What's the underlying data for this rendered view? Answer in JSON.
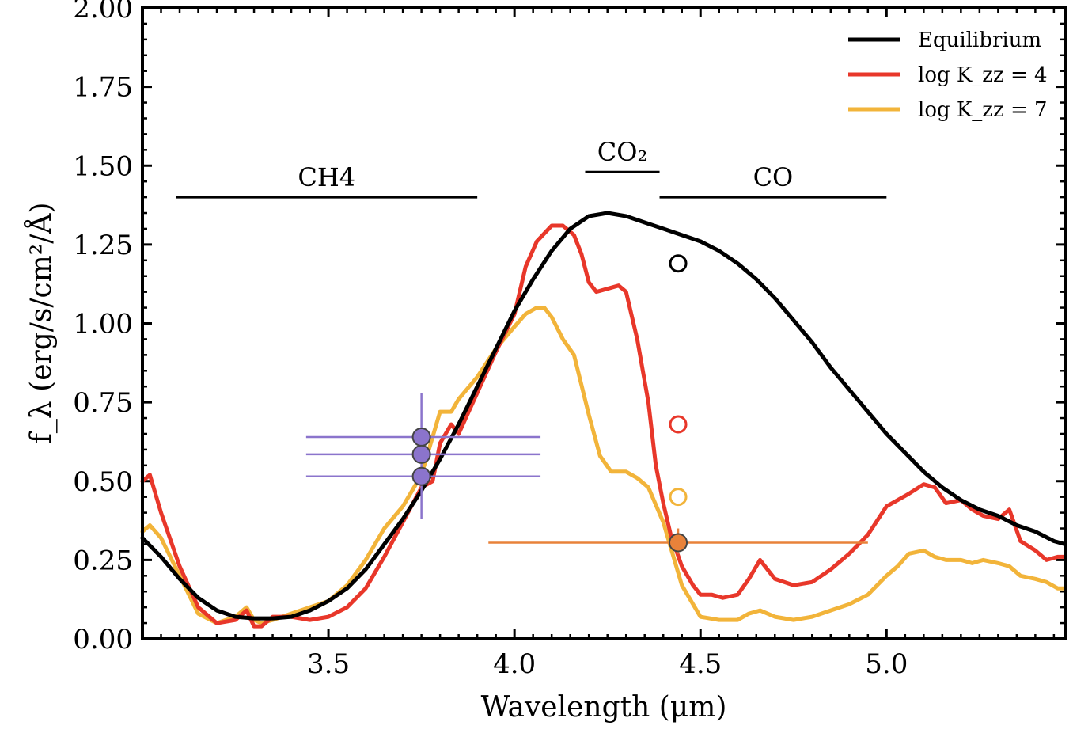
{
  "chart_data": {
    "type": "line",
    "xlabel": "Wavelength (μm)",
    "ylabel": "f_λ (erg/s/cm²/Å)",
    "xlim": [
      3.0,
      5.48
    ],
    "ylim": [
      0.0,
      2.0
    ],
    "x_ticks": [
      3.5,
      4.0,
      4.5,
      5.0
    ],
    "x_tick_labels": [
      "3.5",
      "4.0",
      "4.5",
      "5.0"
    ],
    "y_ticks": [
      0.0,
      0.25,
      0.5,
      0.75,
      1.0,
      1.25,
      1.5,
      1.75,
      2.0
    ],
    "y_tick_labels": [
      "0.00",
      "0.25",
      "0.50",
      "0.75",
      "1.00",
      "1.25",
      "1.50",
      "1.75",
      "2.00"
    ],
    "grid": false,
    "legend_position": "top-right",
    "series": [
      {
        "name": "Equilibrium",
        "color": "#000000",
        "x": [
          3.0,
          3.05,
          3.1,
          3.15,
          3.2,
          3.25,
          3.3,
          3.35,
          3.4,
          3.45,
          3.5,
          3.55,
          3.6,
          3.65,
          3.7,
          3.75,
          3.8,
          3.85,
          3.9,
          3.95,
          4.0,
          4.05,
          4.1,
          4.15,
          4.2,
          4.25,
          4.3,
          4.35,
          4.4,
          4.45,
          4.5,
          4.55,
          4.6,
          4.65,
          4.7,
          4.75,
          4.8,
          4.85,
          4.9,
          4.95,
          5.0,
          5.05,
          5.1,
          5.15,
          5.2,
          5.25,
          5.3,
          5.35,
          5.4,
          5.45,
          5.48
        ],
        "y": [
          0.32,
          0.26,
          0.19,
          0.13,
          0.09,
          0.07,
          0.065,
          0.065,
          0.07,
          0.09,
          0.12,
          0.16,
          0.22,
          0.3,
          0.38,
          0.47,
          0.57,
          0.68,
          0.8,
          0.92,
          1.04,
          1.14,
          1.23,
          1.3,
          1.34,
          1.35,
          1.34,
          1.32,
          1.3,
          1.28,
          1.26,
          1.23,
          1.19,
          1.14,
          1.08,
          1.01,
          0.94,
          0.86,
          0.79,
          0.72,
          0.65,
          0.59,
          0.53,
          0.48,
          0.44,
          0.41,
          0.39,
          0.36,
          0.34,
          0.31,
          0.3
        ]
      },
      {
        "name": "log K_zz = 4",
        "color": "#e8372a",
        "x": [
          3.0,
          3.02,
          3.05,
          3.1,
          3.15,
          3.2,
          3.25,
          3.28,
          3.3,
          3.32,
          3.35,
          3.4,
          3.45,
          3.5,
          3.55,
          3.6,
          3.65,
          3.7,
          3.75,
          3.78,
          3.8,
          3.83,
          3.85,
          3.9,
          3.95,
          4.0,
          4.03,
          4.06,
          4.1,
          4.13,
          4.16,
          4.18,
          4.2,
          4.22,
          4.25,
          4.28,
          4.3,
          4.33,
          4.36,
          4.38,
          4.4,
          4.42,
          4.45,
          4.48,
          4.5,
          4.53,
          4.56,
          4.6,
          4.63,
          4.66,
          4.7,
          4.75,
          4.8,
          4.85,
          4.9,
          4.95,
          5.0,
          5.03,
          5.06,
          5.1,
          5.13,
          5.16,
          5.2,
          5.23,
          5.26,
          5.3,
          5.33,
          5.36,
          5.4,
          5.43,
          5.46,
          5.48
        ],
        "y": [
          0.5,
          0.52,
          0.4,
          0.23,
          0.1,
          0.05,
          0.06,
          0.09,
          0.04,
          0.04,
          0.07,
          0.07,
          0.06,
          0.07,
          0.1,
          0.16,
          0.26,
          0.37,
          0.48,
          0.5,
          0.62,
          0.68,
          0.65,
          0.78,
          0.91,
          1.03,
          1.18,
          1.26,
          1.31,
          1.31,
          1.28,
          1.22,
          1.13,
          1.1,
          1.11,
          1.12,
          1.1,
          0.95,
          0.75,
          0.55,
          0.43,
          0.33,
          0.23,
          0.17,
          0.14,
          0.14,
          0.13,
          0.14,
          0.19,
          0.25,
          0.19,
          0.17,
          0.18,
          0.22,
          0.27,
          0.33,
          0.42,
          0.44,
          0.46,
          0.49,
          0.48,
          0.43,
          0.44,
          0.41,
          0.39,
          0.38,
          0.41,
          0.31,
          0.28,
          0.25,
          0.26,
          0.26
        ]
      },
      {
        "name": "log K_zz = 7",
        "color": "#f2b43a",
        "x": [
          3.0,
          3.02,
          3.05,
          3.1,
          3.15,
          3.2,
          3.25,
          3.28,
          3.3,
          3.32,
          3.35,
          3.4,
          3.45,
          3.5,
          3.55,
          3.6,
          3.65,
          3.7,
          3.75,
          3.8,
          3.83,
          3.85,
          3.9,
          3.95,
          4.0,
          4.03,
          4.06,
          4.08,
          4.1,
          4.13,
          4.16,
          4.2,
          4.23,
          4.26,
          4.3,
          4.33,
          4.36,
          4.4,
          4.45,
          4.5,
          4.55,
          4.6,
          4.63,
          4.66,
          4.7,
          4.75,
          4.8,
          4.85,
          4.9,
          4.95,
          5.0,
          5.03,
          5.06,
          5.1,
          5.13,
          5.16,
          5.2,
          5.23,
          5.26,
          5.3,
          5.33,
          5.36,
          5.4,
          5.43,
          5.46,
          5.48
        ],
        "y": [
          0.34,
          0.36,
          0.32,
          0.2,
          0.08,
          0.05,
          0.07,
          0.1,
          0.06,
          0.05,
          0.06,
          0.08,
          0.1,
          0.12,
          0.17,
          0.25,
          0.35,
          0.42,
          0.52,
          0.72,
          0.72,
          0.76,
          0.83,
          0.92,
          0.99,
          1.03,
          1.05,
          1.05,
          1.02,
          0.95,
          0.9,
          0.71,
          0.58,
          0.53,
          0.53,
          0.51,
          0.48,
          0.37,
          0.17,
          0.07,
          0.06,
          0.06,
          0.08,
          0.09,
          0.07,
          0.06,
          0.07,
          0.09,
          0.11,
          0.14,
          0.2,
          0.23,
          0.27,
          0.28,
          0.26,
          0.25,
          0.25,
          0.24,
          0.25,
          0.24,
          0.23,
          0.2,
          0.19,
          0.18,
          0.16,
          0.16
        ]
      }
    ],
    "observations": [
      {
        "x": 3.75,
        "y": 0.64,
        "xerr": [
          3.44,
          4.07
        ],
        "yerr": [
          0.52,
          0.78
        ],
        "color": "#8b74cc",
        "filled": true
      },
      {
        "x": 3.75,
        "y": 0.585,
        "xerr": [
          3.44,
          4.07
        ],
        "yerr": null,
        "color": "#8b74cc",
        "filled": true
      },
      {
        "x": 3.75,
        "y": 0.515,
        "xerr": [
          3.44,
          4.07
        ],
        "yerr": [
          0.38,
          0.52
        ],
        "color": "#8b74cc",
        "filled": true
      },
      {
        "x": 4.44,
        "y": 0.305,
        "xerr": [
          3.93,
          4.95
        ],
        "yerr": [
          0.27,
          0.35
        ],
        "color": "#e8823a",
        "filled": true
      }
    ],
    "model_points": [
      {
        "x": 4.44,
        "y": 1.19,
        "color": "#000000"
      },
      {
        "x": 4.44,
        "y": 0.68,
        "color": "#e8372a"
      },
      {
        "x": 4.44,
        "y": 0.45,
        "color": "#f2b43a"
      }
    ],
    "bands": [
      {
        "label": "CH4",
        "x_start": 3.09,
        "x_end": 3.9,
        "y": 1.4
      },
      {
        "label": "CO₂",
        "x_start": 4.19,
        "x_end": 4.39,
        "y": 1.48
      },
      {
        "label": "CO",
        "x_start": 4.39,
        "x_end": 5.0,
        "y": 1.4
      }
    ]
  }
}
